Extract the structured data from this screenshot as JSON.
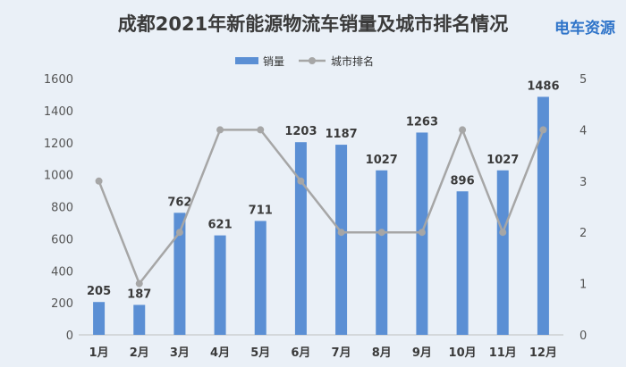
{
  "brand": {
    "logo_text": "电车资源",
    "logo_color": "#2f74c9",
    "logo_accent": "#1aa0e0"
  },
  "chart_data": {
    "type": "bar",
    "title": "成都2021年新能源物流车销量及城市排名情况",
    "categories": [
      "1月",
      "2月",
      "3月",
      "4月",
      "5月",
      "6月",
      "7月",
      "8月",
      "9月",
      "10月",
      "11月",
      "12月"
    ],
    "series": [
      {
        "name": "销量",
        "type": "bar",
        "axis": "left",
        "values": [
          205,
          187,
          762,
          621,
          711,
          1203,
          1187,
          1027,
          1263,
          896,
          1027,
          1486
        ],
        "color": "#5b8fd4"
      },
      {
        "name": "城市排名",
        "type": "line",
        "axis": "right",
        "values": [
          3,
          1,
          2,
          4,
          4,
          3,
          2,
          2,
          2,
          4,
          2,
          4
        ],
        "color": "#a6a6a6"
      }
    ],
    "y_left": {
      "min": 0,
      "max": 1600,
      "ticks": [
        "0",
        "200",
        "400",
        "600",
        "800",
        "1000",
        "1200",
        "1400",
        "1600"
      ]
    },
    "y_right": {
      "min": 0,
      "max": 5,
      "ticks": [
        "0",
        "1",
        "2",
        "3",
        "4",
        "5"
      ]
    },
    "legend_position": "top-center",
    "data_labels": [
      "205",
      "187",
      "762",
      "621",
      "711",
      "1203",
      "1187",
      "1027",
      "1263",
      "896",
      "1027",
      "1486"
    ]
  }
}
